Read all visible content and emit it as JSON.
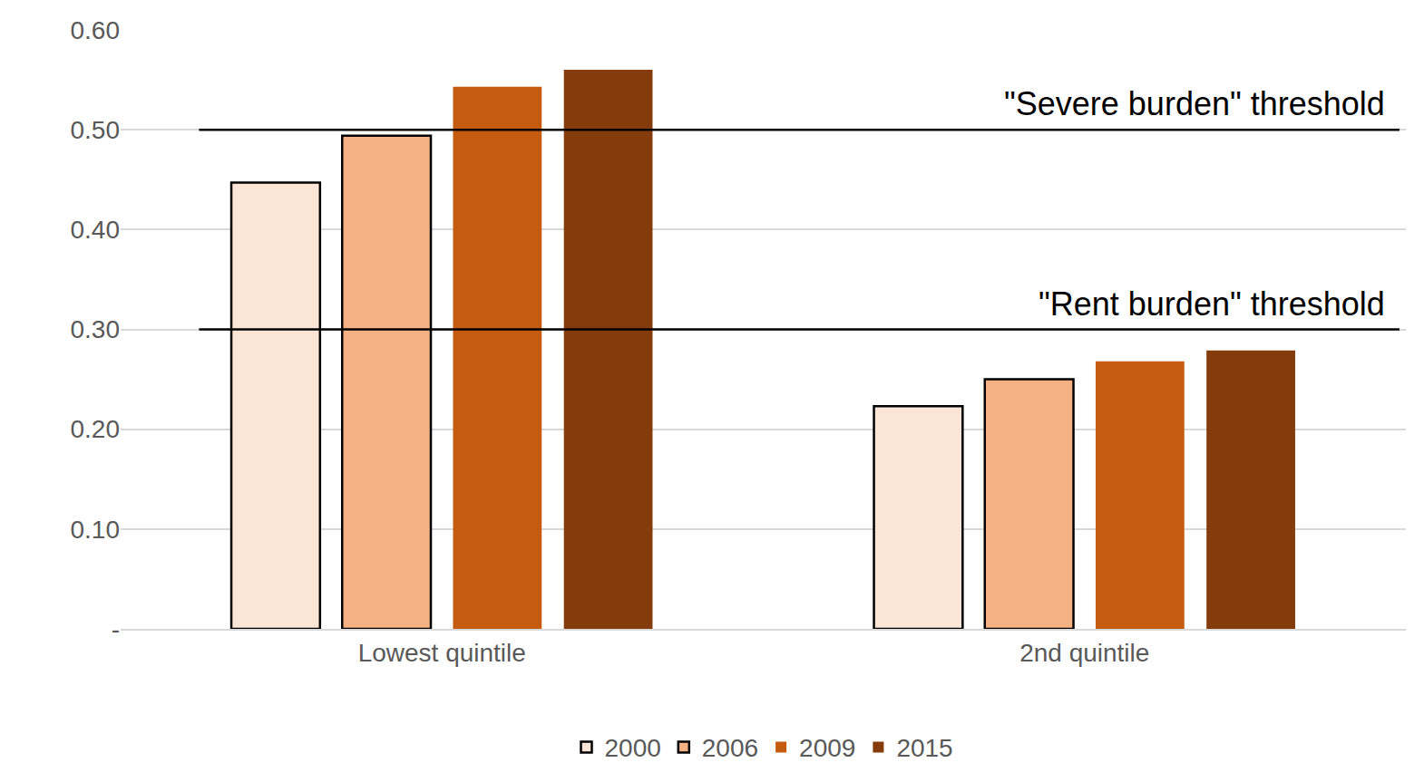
{
  "chart_data": {
    "type": "bar",
    "categories": [
      "Lowest quintile",
      "2nd quintile"
    ],
    "series": [
      {
        "name": "2000",
        "color": "#fbe5d6",
        "values": [
          0.447,
          0.223
        ]
      },
      {
        "name": "2006",
        "color": "#f4b183",
        "values": [
          0.494,
          0.25
        ]
      },
      {
        "name": "2009",
        "color": "#c55a11",
        "values": [
          0.543,
          0.268
        ]
      },
      {
        "name": "2015",
        "color": "#843c0c",
        "values": [
          0.56,
          0.279
        ]
      }
    ],
    "ylim": [
      0,
      0.6
    ],
    "yticks": [
      {
        "value": 0,
        "label": "-"
      },
      {
        "value": 0.1,
        "label": "0.10"
      },
      {
        "value": 0.2,
        "label": "0.20"
      },
      {
        "value": 0.3,
        "label": "0.30"
      },
      {
        "value": 0.4,
        "label": "0.40"
      },
      {
        "value": 0.5,
        "label": "0.50"
      },
      {
        "value": 0.6,
        "label": "0.60"
      }
    ],
    "annotations": [
      {
        "text": "\"Severe burden\" threshold",
        "y": 0.5
      },
      {
        "text": "\"Rent burden\" threshold",
        "y": 0.3
      }
    ],
    "grid": true,
    "legend": "bottom"
  }
}
